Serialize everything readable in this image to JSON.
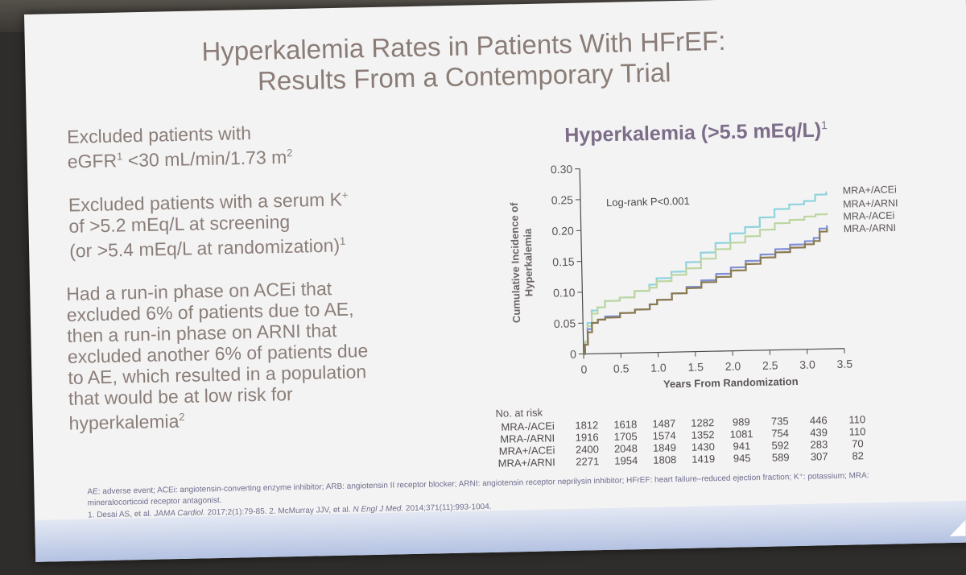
{
  "slide": {
    "title_line1": "Hyperkalemia Rates in Patients With HFrEF:",
    "title_line2": "Results From a Contemporary Trial",
    "bullets": [
      {
        "lines": [
          "Excluded patients with"
        ],
        "line2_pre": "eGFR",
        "line2_sup1": "1",
        "line2_mid": " <30 mL/min/1.73 m",
        "line2_sup2": "2"
      },
      {
        "line1_pre": "Excluded patients with a serum K",
        "line1_sup": "+",
        "line2": "of >5.2 mEq/L at screening",
        "line3_pre": "(or >5.4 mEq/L at randomization)",
        "line3_sup": "1"
      },
      {
        "lines": [
          "Had a run-in phase on ACEi that",
          "excluded 6% of patients due to AE,",
          "then a run-in phase on ARNI that",
          "excluded another 6% of patients due",
          "to AE, which resulted in a population",
          "that would be at low risk for"
        ],
        "last_pre": "hyperkalemia",
        "last_sup": "2"
      }
    ],
    "footnote": "AE: adverse event; ACEi: angiotensin-converting enzyme inhibitor; ARB: angiotensin II receptor blocker; ARNI: angiotensin receptor neprilysin inhibitor; HFrEF: heart failure–reduced ejection fraction; K⁺: potassium; MRA: mineralocorticoid receptor antagonist.",
    "citation_1_pre": "1. Desai AS, et al. ",
    "citation_1_journal": "JAMA Cardiol.",
    "citation_1_post": " 2017;2(1):79-85. ",
    "citation_2_pre": "2. McMurray JJV, et al. ",
    "citation_2_journal": "N Engl J Med.",
    "citation_2_post": " 2014;371(11):993-1004."
  },
  "chart_data": {
    "type": "line",
    "title": "Hyperkalemia (>5.5 mEq/L)",
    "title_sup": "1",
    "xlabel": "Years From Randomization",
    "ylabel_line1": "Cumulative Incidence of",
    "ylabel_line2": "Hyperkalemia",
    "xlim": [
      0,
      3.5
    ],
    "ylim": [
      0,
      0.3
    ],
    "x_ticks": [
      "0",
      "0.5",
      "1.0",
      "1.5",
      "2.0",
      "2.5",
      "3.0",
      "3.5"
    ],
    "y_ticks": [
      "0",
      "0.05",
      "0.10",
      "0.15",
      "0.20",
      "0.25",
      "0.30"
    ],
    "annotation": "Log-rank P<0.001",
    "colors": {
      "mra_plus_acei": "#8fd3dc",
      "mra_plus_arni": "#bcd6a0",
      "mra_minus_acei": "#7f8fd6",
      "mra_minus_arni": "#8a7a4e"
    },
    "series": [
      {
        "name": "MRA+/ACEi",
        "color_key": "mra_plus_acei",
        "points": [
          [
            0,
            0
          ],
          [
            0.02,
            0.02
          ],
          [
            0.06,
            0.05
          ],
          [
            0.12,
            0.07
          ],
          [
            0.2,
            0.075
          ],
          [
            0.3,
            0.085
          ],
          [
            0.5,
            0.09
          ],
          [
            0.7,
            0.1
          ],
          [
            0.9,
            0.11
          ],
          [
            1.0,
            0.12
          ],
          [
            1.2,
            0.13
          ],
          [
            1.4,
            0.145
          ],
          [
            1.6,
            0.16
          ],
          [
            1.8,
            0.175
          ],
          [
            2.0,
            0.19
          ],
          [
            2.2,
            0.2
          ],
          [
            2.4,
            0.215
          ],
          [
            2.6,
            0.228
          ],
          [
            2.8,
            0.235
          ],
          [
            3.0,
            0.24
          ],
          [
            3.15,
            0.25
          ],
          [
            3.3,
            0.255
          ]
        ]
      },
      {
        "name": "MRA+/ARNI",
        "color_key": "mra_plus_arni",
        "points": [
          [
            0,
            0
          ],
          [
            0.02,
            0.02
          ],
          [
            0.06,
            0.045
          ],
          [
            0.12,
            0.065
          ],
          [
            0.2,
            0.075
          ],
          [
            0.3,
            0.085
          ],
          [
            0.5,
            0.09
          ],
          [
            0.7,
            0.1
          ],
          [
            0.9,
            0.105
          ],
          [
            1.0,
            0.115
          ],
          [
            1.2,
            0.125
          ],
          [
            1.4,
            0.135
          ],
          [
            1.6,
            0.15
          ],
          [
            1.8,
            0.165
          ],
          [
            2.0,
            0.175
          ],
          [
            2.2,
            0.185
          ],
          [
            2.4,
            0.195
          ],
          [
            2.6,
            0.205
          ],
          [
            2.8,
            0.21
          ],
          [
            3.0,
            0.215
          ],
          [
            3.15,
            0.218
          ],
          [
            3.3,
            0.22
          ]
        ]
      },
      {
        "name": "MRA-/ACEi",
        "color_key": "mra_minus_acei",
        "points": [
          [
            0,
            0
          ],
          [
            0.02,
            0.015
          ],
          [
            0.06,
            0.04
          ],
          [
            0.12,
            0.05
          ],
          [
            0.2,
            0.055
          ],
          [
            0.3,
            0.06
          ],
          [
            0.5,
            0.065
          ],
          [
            0.7,
            0.07
          ],
          [
            0.9,
            0.078
          ],
          [
            1.0,
            0.085
          ],
          [
            1.2,
            0.095
          ],
          [
            1.4,
            0.105
          ],
          [
            1.6,
            0.115
          ],
          [
            1.8,
            0.125
          ],
          [
            2.0,
            0.135
          ],
          [
            2.2,
            0.145
          ],
          [
            2.4,
            0.155
          ],
          [
            2.6,
            0.163
          ],
          [
            2.8,
            0.17
          ],
          [
            3.0,
            0.175
          ],
          [
            3.12,
            0.18
          ],
          [
            3.2,
            0.195
          ],
          [
            3.3,
            0.2
          ]
        ]
      },
      {
        "name": "MRA-/ARNI",
        "color_key": "mra_minus_arni",
        "points": [
          [
            0,
            0
          ],
          [
            0.02,
            0.015
          ],
          [
            0.06,
            0.035
          ],
          [
            0.12,
            0.05
          ],
          [
            0.2,
            0.055
          ],
          [
            0.3,
            0.058
          ],
          [
            0.5,
            0.065
          ],
          [
            0.7,
            0.07
          ],
          [
            0.9,
            0.078
          ],
          [
            1.0,
            0.085
          ],
          [
            1.2,
            0.095
          ],
          [
            1.4,
            0.103
          ],
          [
            1.6,
            0.112
          ],
          [
            1.8,
            0.12
          ],
          [
            2.0,
            0.13
          ],
          [
            2.2,
            0.14
          ],
          [
            2.4,
            0.15
          ],
          [
            2.6,
            0.158
          ],
          [
            2.8,
            0.165
          ],
          [
            3.0,
            0.17
          ],
          [
            3.12,
            0.175
          ],
          [
            3.2,
            0.19
          ],
          [
            3.3,
            0.195
          ]
        ]
      }
    ],
    "legend": [
      "MRA+/ACEi",
      "MRA+/ARNI",
      "MRA-/ACEi",
      "MRA-/ARNI"
    ],
    "legend_colors": [
      "mra_plus_acei",
      "mra_plus_arni",
      "mra_minus_acei",
      "mra_minus_arni"
    ]
  },
  "risk_table": {
    "label": "No. at risk",
    "rows": [
      {
        "name": "MRA-/ACEi",
        "values": [
          "1812",
          "1618",
          "1487",
          "1282",
          "989",
          "735",
          "446",
          "110"
        ]
      },
      {
        "name": "MRA-/ARNI",
        "values": [
          "1916",
          "1705",
          "1574",
          "1352",
          "1081",
          "754",
          "439",
          "110"
        ]
      },
      {
        "name": "MRA+/ACEi",
        "values": [
          "2400",
          "2048",
          "1849",
          "1430",
          "941",
          "592",
          "283",
          "70"
        ]
      },
      {
        "name": "MRA+/ARNI",
        "values": [
          "2271",
          "1954",
          "1808",
          "1419",
          "945",
          "589",
          "307",
          "82"
        ]
      }
    ]
  }
}
